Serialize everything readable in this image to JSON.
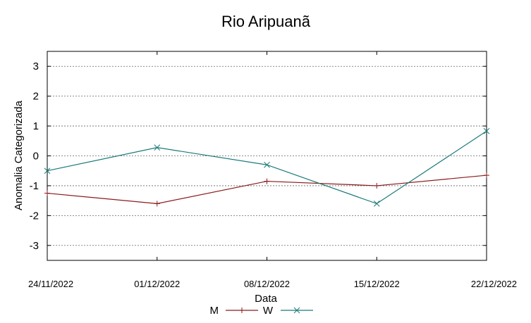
{
  "chart_data": {
    "type": "line",
    "title": "Rio Aripuanã",
    "xlabel": "Data",
    "ylabel": "Anomalia Categorizada",
    "categories": [
      "24/11/2022",
      "01/12/2022",
      "08/12/2022",
      "15/12/2022",
      "22/12/2022"
    ],
    "yticks": [
      "3",
      "2",
      "1",
      "0",
      "-1",
      "-2",
      "-3"
    ],
    "ylim": [
      -3.5,
      3.5
    ],
    "grid": true,
    "legend": "bottom",
    "series": [
      {
        "name": "M",
        "values": [
          -1.25,
          -1.6,
          -0.85,
          -1.0,
          -0.65
        ],
        "color": "#8b1a1a",
        "marker": "plus"
      },
      {
        "name": "W",
        "values": [
          -0.5,
          0.28,
          -0.3,
          -1.6,
          0.83
        ],
        "color": "#1a7a7a",
        "marker": "x"
      }
    ]
  }
}
